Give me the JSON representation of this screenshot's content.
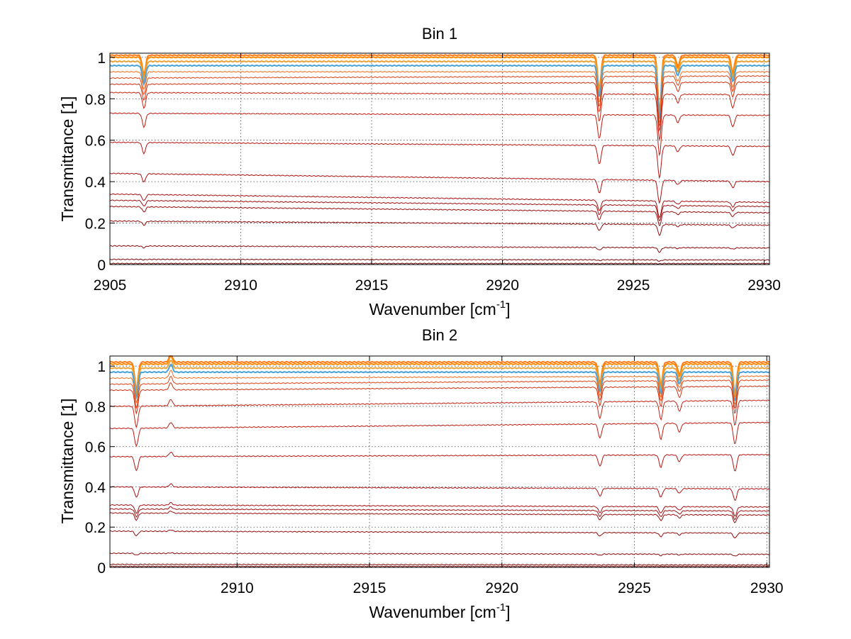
{
  "chart_data": [
    {
      "type": "line",
      "title": "Bin 1",
      "xlabel": "Wavenumber [cm",
      "xlabel_sup": "-1",
      "xlabel_end": "]",
      "ylabel": "Transmittance [1]",
      "xlim": [
        2905,
        2930.2
      ],
      "ylim": [
        0,
        1.02
      ],
      "xticks": [
        "2905",
        "2910",
        "2915",
        "2920",
        "2925",
        "2930"
      ],
      "yticks": [
        "0",
        "0.2",
        "0.4",
        "0.6",
        "0.8",
        "1"
      ],
      "grid": true,
      "baselines_start": [
        1.01,
        1.0,
        0.98,
        0.96,
        0.93,
        0.9,
        0.87,
        0.83,
        0.73,
        0.59,
        0.44,
        0.34,
        0.31,
        0.28,
        0.21,
        0.09,
        0.025,
        0.005
      ],
      "baselines_end": [
        1.01,
        1.0,
        0.98,
        0.96,
        0.93,
        0.91,
        0.88,
        0.82,
        0.72,
        0.57,
        0.4,
        0.3,
        0.28,
        0.25,
        0.19,
        0.08,
        0.022,
        0.005
      ],
      "dips": [
        {
          "x": 2906.3,
          "rel_depth": 0.09
        },
        {
          "x": 2923.7,
          "rel_depth": 0.16
        },
        {
          "x": 2926.0,
          "rel_depth": 0.27
        },
        {
          "x": 2926.7,
          "rel_depth": 0.05
        },
        {
          "x": 2928.8,
          "rel_depth": 0.08
        }
      ]
    },
    {
      "type": "line",
      "title": "Bin 2",
      "xlabel": "Wavenumber [cm",
      "xlabel_sup": "-1",
      "xlabel_end": "]",
      "ylabel": "Transmittance [1]",
      "xlim": [
        2905.2,
        2930.1
      ],
      "ylim": [
        0,
        1.05
      ],
      "xticks": [
        "2910",
        "2915",
        "2920",
        "2925",
        "2930"
      ],
      "yticks": [
        "0",
        "0.2",
        "0.4",
        "0.6",
        "0.8",
        "1"
      ],
      "grid": true,
      "baselines_start": [
        1.02,
        1.01,
        0.99,
        0.97,
        0.94,
        0.91,
        0.88,
        0.8,
        0.69,
        0.55,
        0.4,
        0.31,
        0.29,
        0.27,
        0.18,
        0.07,
        0.015,
        0.005
      ],
      "baselines_end": [
        1.02,
        1.01,
        0.99,
        0.97,
        0.95,
        0.93,
        0.9,
        0.83,
        0.72,
        0.56,
        0.39,
        0.3,
        0.28,
        0.26,
        0.17,
        0.065,
        0.012,
        0.005
      ],
      "dips": [
        {
          "x": 2906.2,
          "rel_depth": 0.13
        },
        {
          "x": 2907.5,
          "rel_depth": -0.04
        },
        {
          "x": 2923.7,
          "rel_depth": 0.1
        },
        {
          "x": 2926.0,
          "rel_depth": 0.11
        },
        {
          "x": 2926.7,
          "rel_depth": 0.06
        },
        {
          "x": 2928.8,
          "rel_depth": 0.15
        }
      ]
    }
  ]
}
